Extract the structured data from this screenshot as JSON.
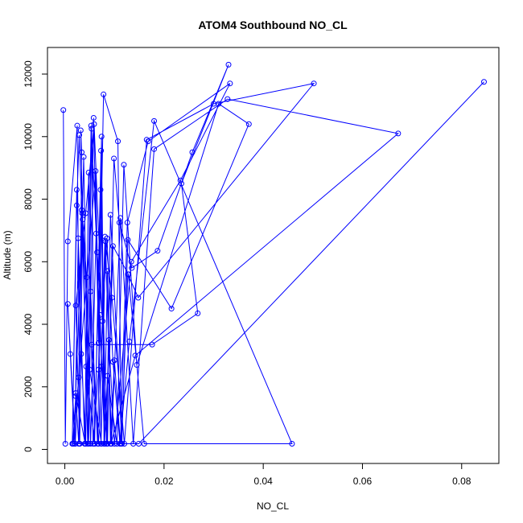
{
  "chart_data": {
    "type": "line",
    "title": "ATOM4 Southbound NO_CL",
    "xlabel": "NO_CL",
    "ylabel": "Altitude (m)",
    "xlim": [
      -0.0035,
      0.0875
    ],
    "ylim": [
      -450,
      12850
    ],
    "xticks": [
      0,
      0.02,
      0.04,
      0.06,
      0.08
    ],
    "xtick_labels": [
      "0.00",
      "0.02",
      "0.04",
      "0.06",
      "0.08"
    ],
    "yticks": [
      0,
      2000,
      4000,
      6000,
      8000,
      10000,
      12000
    ],
    "ytick_labels": [
      "0",
      "2000",
      "4000",
      "6000",
      "8000",
      "10000",
      "12000"
    ],
    "grid": false,
    "color": "#0000ff",
    "marker": "open-circle",
    "series": [
      {
        "x": [
          -0.0003,
          0.0001,
          0.0006,
          0.0025,
          0.003,
          0.0022,
          0.0042,
          0.0059,
          0.0086,
          0.0099,
          0.011,
          0.0135,
          0.0187,
          0.0257,
          0.033,
          0.0235,
          0.0268,
          0.0176,
          0.0054,
          0.0068,
          0.0081,
          0.0095,
          0.012,
          0.0165,
          0.03,
          0.0502,
          0.0148,
          0.0127,
          0.0114,
          0.0107,
          0.0078,
          0.0068,
          0.0057,
          0.0048,
          0.004,
          0.0024,
          0.0015,
          0.0024,
          0.0029,
          0.0034,
          0.0043,
          0.006,
          0.0073,
          0.0079,
          0.0086,
          0.0092,
          0.01,
          0.0112,
          0.0126,
          0.0168,
          0.0333,
          0.0233,
          0.0134,
          0.01,
          0.0089,
          0.008,
          0.0074,
          0.0068,
          0.0058,
          0.0048,
          0.0038,
          0.0028,
          0.0021,
          0.0006,
          0.0011,
          0.002,
          0.0027,
          0.0033,
          0.0042,
          0.0053,
          0.0065,
          0.0076,
          0.0085,
          0.0097,
          0.0111,
          0.013,
          0.018,
          0.0458,
          0.016,
          0.0128,
          0.0097,
          0.0085,
          0.0074,
          0.0063,
          0.0052,
          0.0044,
          0.0036,
          0.003,
          0.0017,
          0.0062,
          0.0073,
          0.0082,
          0.0094,
          0.0112,
          0.0138,
          0.018,
          0.0328,
          0.0672,
          0.0142,
          0.0093,
          0.0074,
          0.005,
          0.0035,
          0.0022,
          0.0041,
          0.0052,
          0.0066,
          0.0071,
          0.008,
          0.0086,
          0.0105,
          0.0119,
          0.0145,
          0.031,
          0.0371,
          0.0215,
          0.0127,
          0.0115,
          0.0092,
          0.0084,
          0.0072,
          0.006,
          0.0054,
          0.0046,
          0.0032,
          0.0034,
          0.0028,
          0.0022,
          0.0016,
          0.0149,
          0.0845
        ],
        "y": [
          10850,
          180,
          6650,
          10350,
          180,
          4600,
          7550,
          10400,
          180,
          9300,
          7250,
          5800,
          6350,
          9500,
          12300,
          8500,
          4350,
          3350,
          3350,
          180,
          6800,
          4850,
          180,
          9900,
          11050,
          11700,
          4850,
          5600,
          180,
          9850,
          11350,
          2550,
          180,
          8850,
          180,
          8300,
          180,
          7800,
          10050,
          7650,
          2650,
          180,
          9550,
          180,
          5700,
          180,
          2850,
          180,
          7250,
          9850,
          11700,
          8600,
          6000,
          180,
          3500,
          180,
          10000,
          3400,
          10600,
          180,
          9350,
          2300,
          180,
          4650,
          3050,
          180,
          6750,
          3050,
          180,
          10350,
          6300,
          4100,
          6750,
          2800,
          180,
          3450,
          10500,
          180,
          180,
          5600,
          6500,
          180,
          2650,
          6900,
          180,
          5500,
          7350,
          180,
          180,
          8900,
          180,
          6650,
          180,
          7400,
          180,
          9600,
          11200,
          10100,
          3000,
          180,
          180,
          2550,
          7550,
          1800,
          180,
          5050,
          180,
          4300,
          180,
          2350,
          180,
          9100,
          2700,
          11050,
          10400,
          4500,
          6700,
          180,
          7500,
          180,
          8300,
          180,
          10250,
          180,
          10200,
          9500,
          180,
          1700,
          180,
          180,
          11750
        ]
      }
    ]
  }
}
